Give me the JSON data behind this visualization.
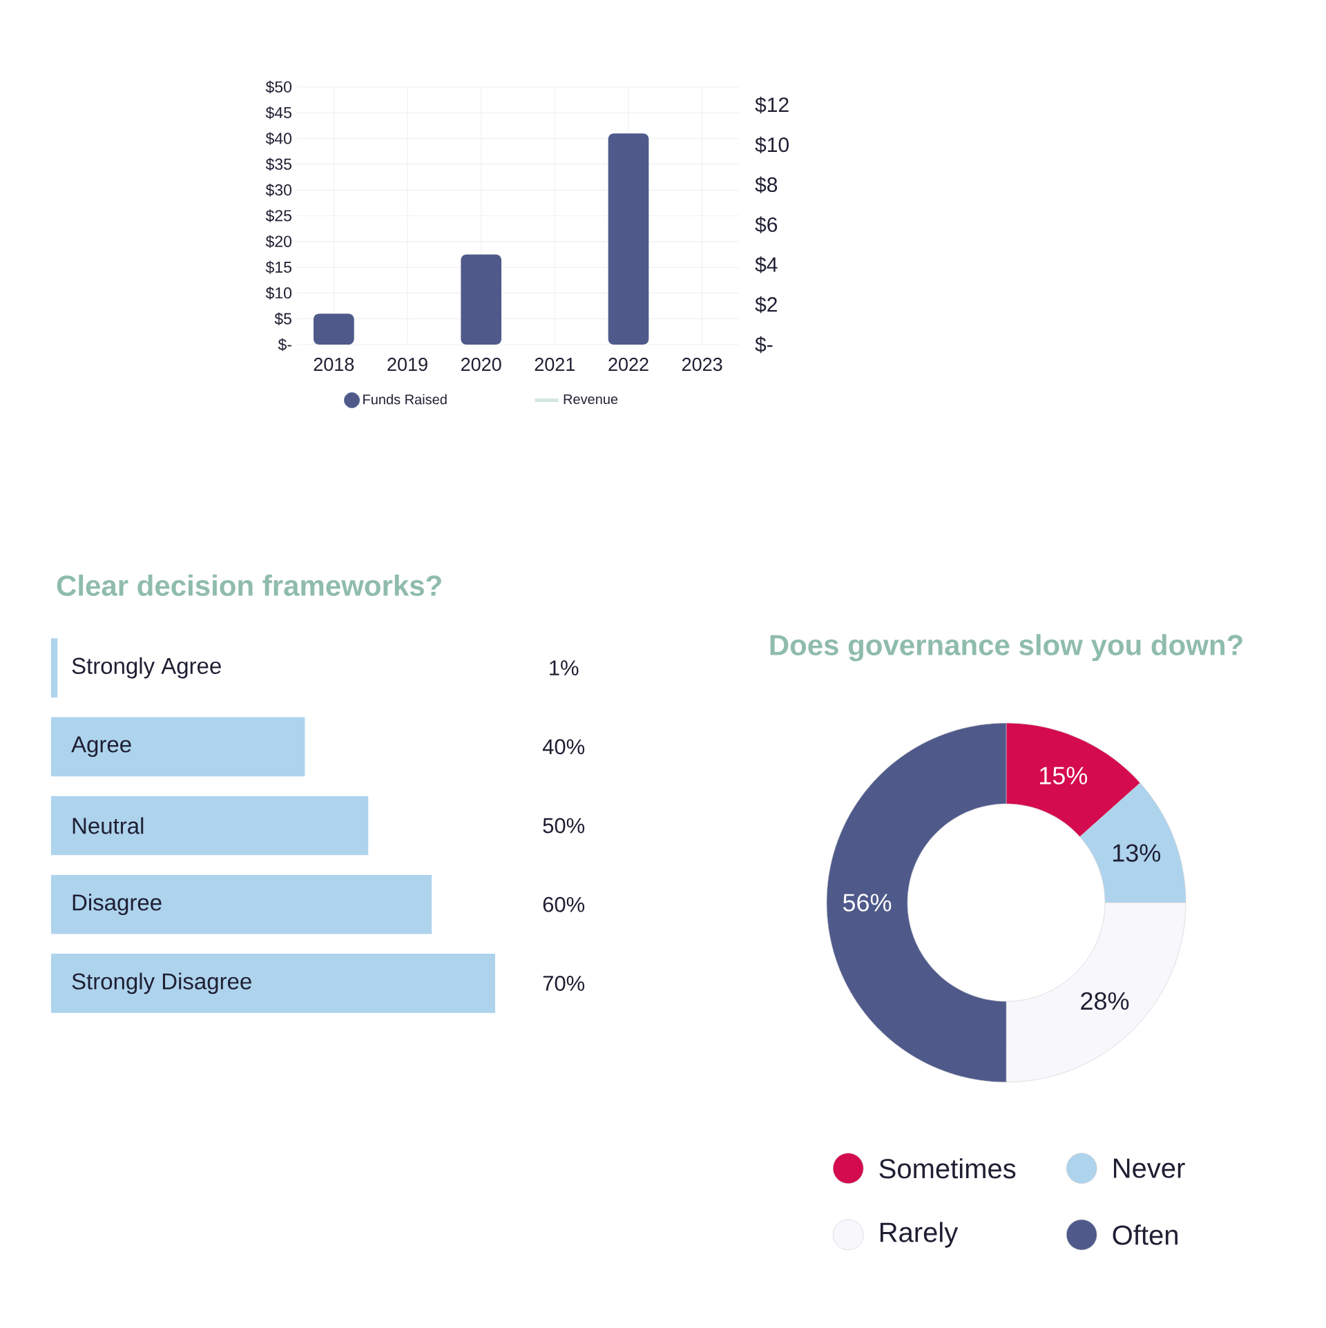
{
  "chart_data": [
    {
      "type": "bar",
      "categories": [
        "2018",
        "2019",
        "2020",
        "2021",
        "2022",
        "2023"
      ],
      "series": [
        {
          "name": "Funds Raised",
          "color": "#4f5a8b",
          "values": [
            6,
            0,
            17.5,
            0,
            41,
            0
          ]
        },
        {
          "name": "Revenue",
          "type": "line",
          "color": "#d3e6e0",
          "values": [
            null,
            null,
            null,
            null,
            null,
            null
          ]
        }
      ],
      "ylim": [
        0,
        50
      ],
      "yticks": [
        {
          "value": 0,
          "label": "$-"
        },
        {
          "value": 5,
          "label": "$5"
        },
        {
          "value": 10,
          "label": "$10"
        },
        {
          "value": 15,
          "label": "$15"
        },
        {
          "value": 20,
          "label": "$20"
        },
        {
          "value": 25,
          "label": "$25"
        },
        {
          "value": 30,
          "label": "$30"
        },
        {
          "value": 35,
          "label": "$35"
        },
        {
          "value": 40,
          "label": "$40"
        },
        {
          "value": 45,
          "label": "$45"
        },
        {
          "value": 50,
          "label": "$50"
        }
      ],
      "y2lim": [
        0,
        12.9
      ],
      "y2ticks": [
        {
          "value": 0,
          "label": "$-"
        },
        {
          "value": 2,
          "label": "$2"
        },
        {
          "value": 4,
          "label": "$4"
        },
        {
          "value": 6,
          "label": "$6"
        },
        {
          "value": 8,
          "label": "$8"
        },
        {
          "value": 10,
          "label": "$10"
        },
        {
          "value": 12,
          "label": "$12"
        }
      ],
      "grid": true,
      "legend": "bottom"
    },
    {
      "type": "bar",
      "orientation": "horizontal",
      "title": "Clear decision frameworks?",
      "categories": [
        "Strongly Agree",
        "Agree",
        "Neutral",
        "Disagree",
        "Strongly Disagree"
      ],
      "values": [
        1,
        40,
        50,
        60,
        70
      ],
      "value_labels": [
        "1%",
        "40%",
        "50%",
        "60%",
        "70%"
      ],
      "color": "#aed3ed"
    },
    {
      "type": "donut",
      "title": "Does governance slow you down?",
      "categories": [
        "Sometimes",
        "Never",
        "Rarely",
        "Often"
      ],
      "values": [
        15,
        13,
        28,
        56
      ],
      "value_labels": [
        "15%",
        "13%",
        "28%",
        "56%"
      ],
      "colors": [
        "#d40b4e",
        "#aed3ed",
        "#f7f7fc",
        "#4f5a8b"
      ],
      "legend": "bottom"
    }
  ]
}
